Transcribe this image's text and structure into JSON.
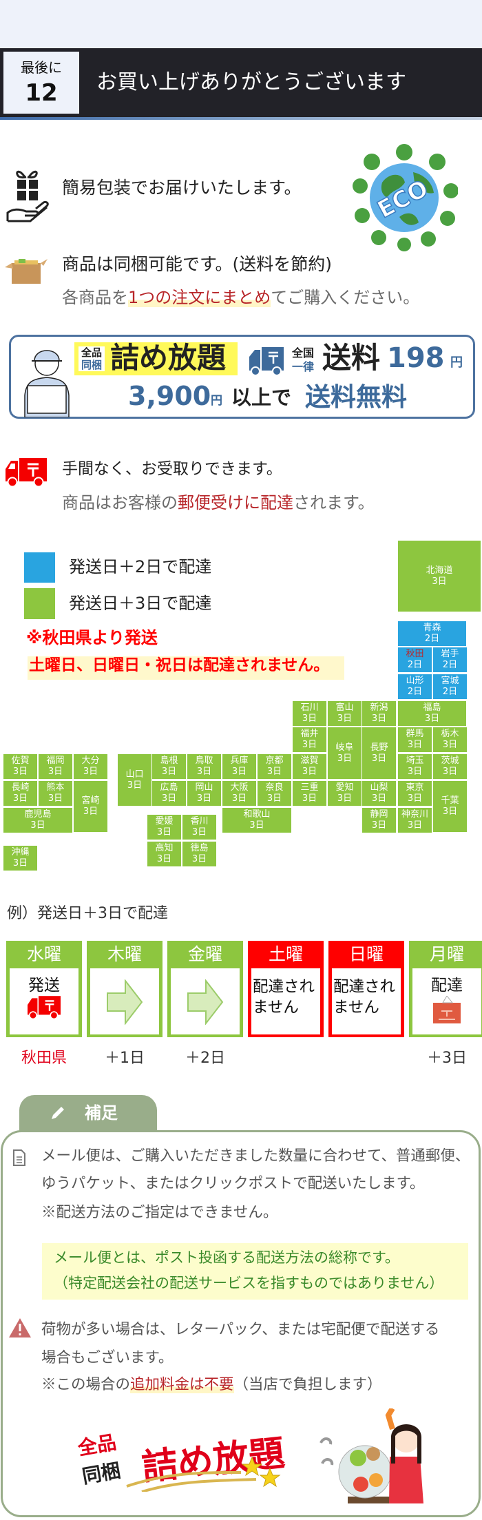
{
  "header": {
    "badge_top": "最後に",
    "badge_number": "12",
    "title": "お買い上げありがとうございます"
  },
  "intro": {
    "wrapping": "簡易包装でお届けいたします。",
    "eco_label": "ECO",
    "bundle_line1": "商品は同梱可能です。(送料を節約)",
    "bundle_line2_pre": "各商品を",
    "bundle_line2_highlight": "1つの注文にまとめ",
    "bundle_line2_post": "てご購入ください。"
  },
  "banner": {
    "tag_top": "全品",
    "tag_bottom": "同梱",
    "main": "詰め放題",
    "national_top": "全国",
    "national_bottom": "一律",
    "shipping": "送料",
    "price": "198",
    "yen": "円",
    "threshold": "3,900",
    "threshold_yen": "円",
    "above": "以上で",
    "free": "送料無料",
    "accent_color": "#3d6a9b"
  },
  "delivery": {
    "line1": "手間なく、お受取りできます。",
    "line2_pre": "商品はお客様の",
    "line2_highlight": "郵便受けに配達",
    "line2_post": "されます。"
  },
  "map": {
    "legend": [
      {
        "label": "発送日＋2日で配達",
        "color": "#29a4e0"
      },
      {
        "label": "発送日＋3日で配達",
        "color": "#8dc63f"
      }
    ],
    "origin_note": "※秋田県より発送",
    "weekend_note": "土曜日、日曜日・祝日は配達されません。",
    "prefectures": [
      {
        "name": "北海道",
        "days": "3日"
      },
      {
        "name": "青森",
        "days": "2日"
      },
      {
        "name": "秋田",
        "days": "2日",
        "origin": true
      },
      {
        "name": "岩手",
        "days": "2日"
      },
      {
        "name": "山形",
        "days": "2日"
      },
      {
        "name": "宮城",
        "days": "2日"
      },
      {
        "name": "石川",
        "days": "3日"
      },
      {
        "name": "富山",
        "days": "3日"
      },
      {
        "name": "新潟",
        "days": "3日"
      },
      {
        "name": "福島",
        "days": "3日"
      },
      {
        "name": "福井",
        "days": "3日"
      },
      {
        "name": "岐阜",
        "days": "3日"
      },
      {
        "name": "長野",
        "days": "3日"
      },
      {
        "name": "群馬",
        "days": "3日"
      },
      {
        "name": "栃木",
        "days": "3日"
      },
      {
        "name": "佐賀",
        "days": "3日"
      },
      {
        "name": "福岡",
        "days": "3日"
      },
      {
        "name": "大分",
        "days": "3日"
      },
      {
        "name": "山口",
        "days": "3日"
      },
      {
        "name": "島根",
        "days": "3日"
      },
      {
        "name": "鳥取",
        "days": "3日"
      },
      {
        "name": "兵庫",
        "days": "3日"
      },
      {
        "name": "京都",
        "days": "3日"
      },
      {
        "name": "滋賀",
        "days": "3日"
      },
      {
        "name": "埼玉",
        "days": "3日"
      },
      {
        "name": "茨城",
        "days": "3日"
      },
      {
        "name": "長崎",
        "days": "3日"
      },
      {
        "name": "熊本",
        "days": "3日"
      },
      {
        "name": "宮崎",
        "days": "3日"
      },
      {
        "name": "広島",
        "days": "3日"
      },
      {
        "name": "岡山",
        "days": "3日"
      },
      {
        "name": "大阪",
        "days": "3日"
      },
      {
        "name": "奈良",
        "days": "3日"
      },
      {
        "name": "三重",
        "days": "3日"
      },
      {
        "name": "愛知",
        "days": "3日"
      },
      {
        "name": "山梨",
        "days": "3日"
      },
      {
        "name": "東京",
        "days": "3日"
      },
      {
        "name": "千葉",
        "days": "3日"
      },
      {
        "name": "鹿児島",
        "days": "3日"
      },
      {
        "name": "和歌山",
        "days": "3日"
      },
      {
        "name": "静岡",
        "days": "3日"
      },
      {
        "name": "神奈川",
        "days": "3日"
      },
      {
        "name": "愛媛",
        "days": "3日"
      },
      {
        "name": "香川",
        "days": "3日"
      },
      {
        "name": "高知",
        "days": "3日"
      },
      {
        "name": "徳島",
        "days": "3日"
      },
      {
        "name": "沖縄",
        "days": "3日"
      }
    ]
  },
  "calendar": {
    "title": "例）発送日＋3日で配達",
    "days": [
      {
        "day": "水曜",
        "body": "発送",
        "below": "秋田県",
        "status": "ship"
      },
      {
        "day": "木曜",
        "body": "",
        "below": "＋1日",
        "status": "transit"
      },
      {
        "day": "金曜",
        "body": "",
        "below": "＋2日",
        "status": "transit"
      },
      {
        "day": "土曜",
        "body": "配達されません",
        "below": "",
        "status": "no-delivery"
      },
      {
        "day": "日曜",
        "body": "配達されません",
        "below": "",
        "status": "no-delivery"
      },
      {
        "day": "月曜",
        "body": "配達",
        "below": "＋3日",
        "status": "deliver"
      }
    ],
    "colors": {
      "normal": "#8dc63f",
      "no_delivery": "#ff0000"
    }
  },
  "notes": {
    "tab": "補足",
    "mail_line1": "メール便は、ご購入いただきました数量に合わせて、普通郵便、",
    "mail_line2": "ゆうパケット、またはクリックポストで配送いたします。",
    "mail_line3": "※配送方法のご指定はできません。",
    "def_line1": "メール便とは、ポスト投函する配送方法の総称です。",
    "def_line2": "（特定配送会社の配送サービスを指すものではありません）",
    "warn_line1": "荷物が多い場合は、レターパック、または宅配便で配送する",
    "warn_line2": "場合もございます。",
    "warn_line3_pre": "※この場合の",
    "warn_line3_highlight": "追加料金は不要",
    "warn_line3_post": "（当店で負担します）",
    "logo_top": "全品",
    "logo_bottom": "同梱",
    "logo_main": "詰め放題"
  }
}
